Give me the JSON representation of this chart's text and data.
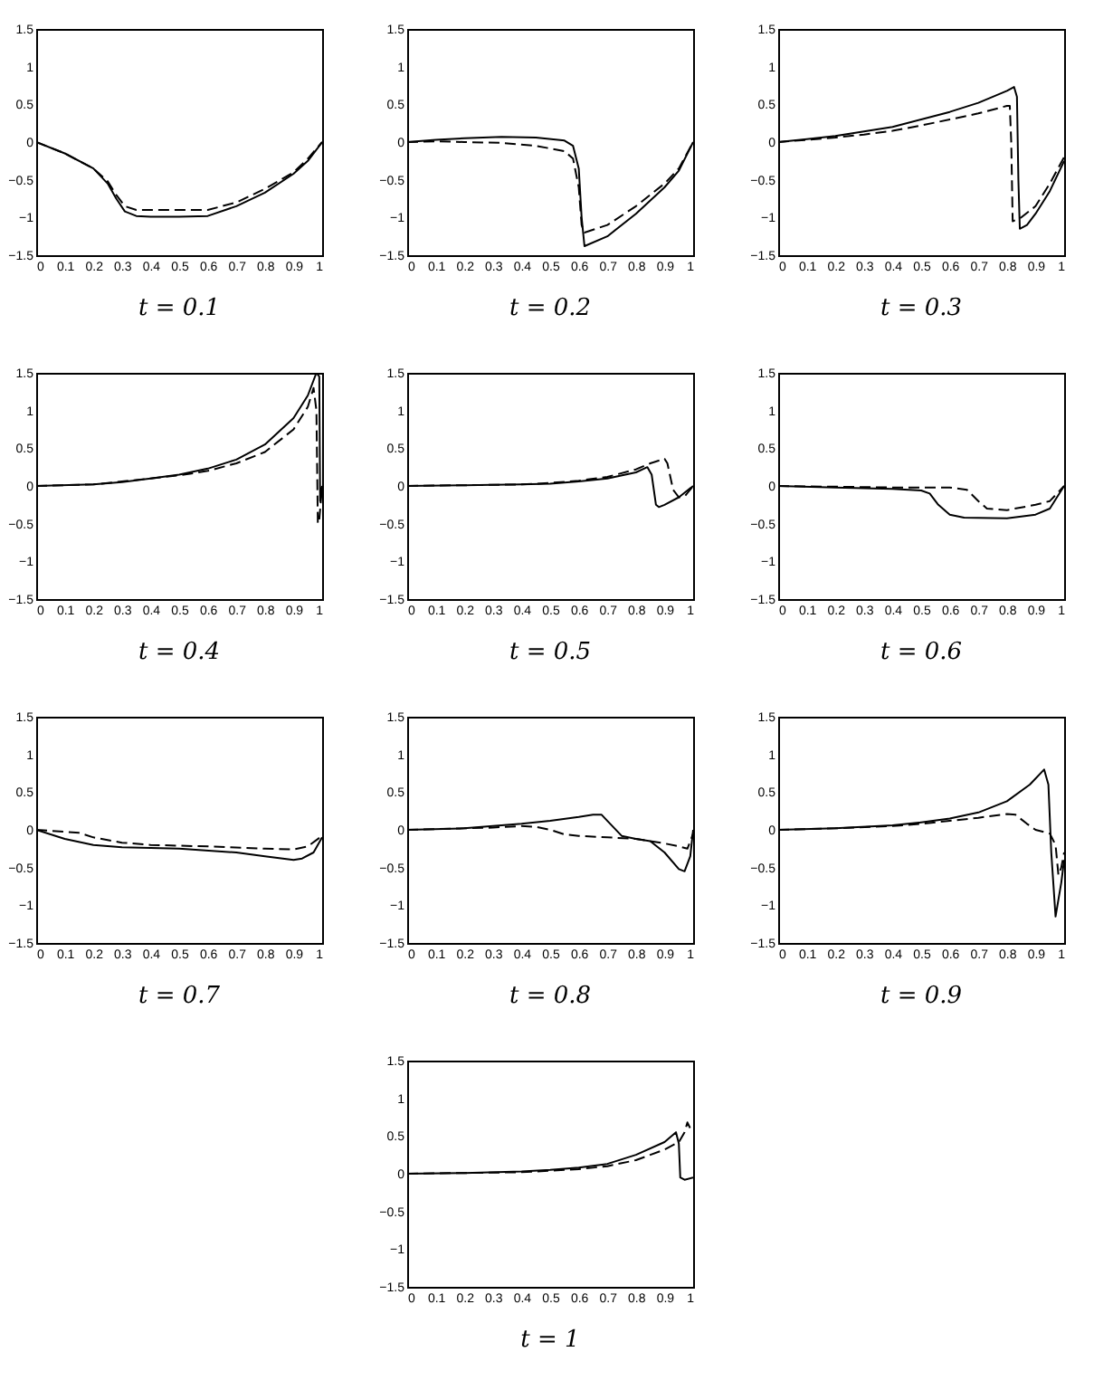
{
  "chart_data": [
    {
      "type": "line",
      "title": "t = 0.1",
      "xlim": [
        0,
        1
      ],
      "ylim": [
        -1.5,
        1.5
      ],
      "xticks": [
        0,
        0.1,
        0.2,
        0.3,
        0.4,
        0.5,
        0.6,
        0.7,
        0.8,
        0.9,
        1
      ],
      "yticks": [
        -1.5,
        -1,
        -0.5,
        0,
        0.5,
        1,
        1.5
      ],
      "grid": false,
      "marker": "none",
      "series": [
        {
          "color": "#000000",
          "line_style": "solid",
          "x": [
            0,
            0.1,
            0.2,
            0.25,
            0.28,
            0.31,
            0.35,
            0.4,
            0.5,
            0.6,
            0.7,
            0.8,
            0.9,
            0.95,
            1
          ],
          "values": [
            0,
            -0.15,
            -0.35,
            -0.55,
            -0.75,
            -0.92,
            -0.98,
            -0.99,
            -0.99,
            -0.98,
            -0.85,
            -0.67,
            -0.42,
            -0.25,
            0
          ]
        },
        {
          "color": "#000000",
          "line_style": "dashed",
          "x": [
            0,
            0.1,
            0.2,
            0.25,
            0.28,
            0.31,
            0.35,
            0.5,
            0.6,
            0.7,
            0.8,
            0.9,
            0.95,
            1
          ],
          "values": [
            0,
            -0.15,
            -0.35,
            -0.52,
            -0.7,
            -0.85,
            -0.9,
            -0.9,
            -0.9,
            -0.8,
            -0.62,
            -0.4,
            -0.22,
            0
          ]
        }
      ]
    },
    {
      "type": "line",
      "title": "t = 0.2",
      "xlim": [
        0,
        1
      ],
      "ylim": [
        -1.5,
        1.5
      ],
      "xticks": [
        0,
        0.1,
        0.2,
        0.3,
        0.4,
        0.5,
        0.6,
        0.7,
        0.8,
        0.9,
        1
      ],
      "yticks": [
        -1.5,
        -1,
        -0.5,
        0,
        0.5,
        1,
        1.5
      ],
      "grid": false,
      "marker": "none",
      "series": [
        {
          "color": "#000000",
          "line_style": "solid",
          "x": [
            0,
            0.1,
            0.2,
            0.33,
            0.45,
            0.55,
            0.58,
            0.6,
            0.61,
            0.62,
            0.7,
            0.8,
            0.9,
            0.95,
            1
          ],
          "values": [
            0,
            0.03,
            0.05,
            0.07,
            0.06,
            0.02,
            -0.05,
            -0.35,
            -1.0,
            -1.38,
            -1.25,
            -0.95,
            -0.6,
            -0.38,
            0
          ]
        },
        {
          "color": "#000000",
          "line_style": "dashed",
          "x": [
            0,
            0.1,
            0.2,
            0.33,
            0.45,
            0.55,
            0.58,
            0.6,
            0.61,
            0.62,
            0.7,
            0.8,
            0.9,
            0.95,
            1
          ],
          "values": [
            0,
            0.01,
            0,
            -0.01,
            -0.05,
            -0.12,
            -0.22,
            -0.6,
            -1.1,
            -1.2,
            -1.1,
            -0.85,
            -0.55,
            -0.35,
            0
          ]
        }
      ]
    },
    {
      "type": "line",
      "title": "t = 0.3",
      "xlim": [
        0,
        1
      ],
      "ylim": [
        -1.5,
        1.5
      ],
      "xticks": [
        0,
        0.1,
        0.2,
        0.3,
        0.4,
        0.5,
        0.6,
        0.7,
        0.8,
        0.9,
        1
      ],
      "yticks": [
        -1.5,
        -1,
        -0.5,
        0,
        0.5,
        1,
        1.5
      ],
      "grid": false,
      "marker": "none",
      "series": [
        {
          "color": "#000000",
          "line_style": "solid",
          "x": [
            0,
            0.1,
            0.2,
            0.3,
            0.4,
            0.5,
            0.6,
            0.7,
            0.8,
            0.825,
            0.835,
            0.84,
            0.845,
            0.87,
            0.9,
            0.95,
            1
          ],
          "values": [
            0,
            0.04,
            0.08,
            0.14,
            0.2,
            0.3,
            0.4,
            0.52,
            0.68,
            0.73,
            0.6,
            -0.5,
            -1.15,
            -1.1,
            -0.95,
            -0.65,
            -0.25
          ]
        },
        {
          "color": "#000000",
          "line_style": "dashed",
          "x": [
            0,
            0.1,
            0.2,
            0.3,
            0.4,
            0.5,
            0.6,
            0.7,
            0.8,
            0.81,
            0.815,
            0.82,
            0.85,
            0.9,
            0.95,
            1
          ],
          "values": [
            0,
            0.03,
            0.06,
            0.1,
            0.15,
            0.22,
            0.3,
            0.38,
            0.48,
            0.48,
            0,
            -1.05,
            -1.0,
            -0.85,
            -0.55,
            -0.2
          ]
        }
      ]
    },
    {
      "type": "line",
      "title": "t = 0.4",
      "xlim": [
        0,
        1
      ],
      "ylim": [
        -1.5,
        1.5
      ],
      "xticks": [
        0,
        0.1,
        0.2,
        0.3,
        0.4,
        0.5,
        0.6,
        0.7,
        0.8,
        0.9,
        1
      ],
      "yticks": [
        -1.5,
        -1,
        -0.5,
        0,
        0.5,
        1,
        1.5
      ],
      "grid": false,
      "marker": "none",
      "series": [
        {
          "color": "#000000",
          "line_style": "solid",
          "x": [
            0,
            0.2,
            0.3,
            0.4,
            0.5,
            0.6,
            0.7,
            0.8,
            0.9,
            0.95,
            0.98,
            0.99,
            0.993,
            1
          ],
          "values": [
            0,
            0.02,
            0.05,
            0.1,
            0.15,
            0.23,
            0.35,
            0.55,
            0.9,
            1.2,
            1.5,
            1.45,
            -0.2,
            0
          ]
        },
        {
          "color": "#000000",
          "line_style": "dashed",
          "x": [
            0,
            0.2,
            0.4,
            0.5,
            0.6,
            0.7,
            0.8,
            0.9,
            0.95,
            0.97,
            0.98,
            0.985,
            0.99,
            1
          ],
          "values": [
            0,
            0.02,
            0.1,
            0.14,
            0.2,
            0.3,
            0.45,
            0.75,
            1.05,
            1.3,
            1.0,
            -0.5,
            -0.45,
            0
          ]
        }
      ]
    },
    {
      "type": "line",
      "title": "t = 0.5",
      "xlim": [
        0,
        1
      ],
      "ylim": [
        -1.5,
        1.5
      ],
      "xticks": [
        0,
        0.1,
        0.2,
        0.3,
        0.4,
        0.5,
        0.6,
        0.7,
        0.8,
        0.9,
        1
      ],
      "yticks": [
        -1.5,
        -1,
        -0.5,
        0,
        0.5,
        1,
        1.5
      ],
      "grid": false,
      "marker": "none",
      "series": [
        {
          "color": "#000000",
          "line_style": "solid",
          "x": [
            0,
            0.2,
            0.4,
            0.5,
            0.6,
            0.7,
            0.8,
            0.84,
            0.855,
            0.87,
            0.88,
            0.9,
            0.95,
            1
          ],
          "values": [
            0,
            0.01,
            0.02,
            0.03,
            0.06,
            0.1,
            0.18,
            0.25,
            0.15,
            -0.25,
            -0.28,
            -0.25,
            -0.15,
            0
          ]
        },
        {
          "color": "#000000",
          "line_style": "dashed",
          "x": [
            0,
            0.2,
            0.4,
            0.5,
            0.6,
            0.7,
            0.8,
            0.85,
            0.9,
            0.91,
            0.93,
            0.95,
            0.97,
            1
          ],
          "values": [
            0,
            0.01,
            0.02,
            0.04,
            0.07,
            0.12,
            0.22,
            0.3,
            0.36,
            0.3,
            -0.05,
            -0.15,
            -0.14,
            0
          ]
        }
      ]
    },
    {
      "type": "line",
      "title": "t = 0.6",
      "xlim": [
        0,
        1
      ],
      "ylim": [
        -1.5,
        1.5
      ],
      "xticks": [
        0,
        0.1,
        0.2,
        0.3,
        0.4,
        0.5,
        0.6,
        0.7,
        0.8,
        0.9,
        1
      ],
      "yticks": [
        -1.5,
        -1,
        -0.5,
        0,
        0.5,
        1,
        1.5
      ],
      "grid": false,
      "marker": "none",
      "series": [
        {
          "color": "#000000",
          "line_style": "solid",
          "x": [
            0,
            0.2,
            0.4,
            0.5,
            0.53,
            0.56,
            0.6,
            0.65,
            0.8,
            0.9,
            0.95,
            1
          ],
          "values": [
            0,
            -0.02,
            -0.04,
            -0.06,
            -0.1,
            -0.25,
            -0.38,
            -0.42,
            -0.43,
            -0.38,
            -0.3,
            0
          ]
        },
        {
          "color": "#000000",
          "line_style": "dashed",
          "x": [
            0,
            0.2,
            0.4,
            0.6,
            0.66,
            0.7,
            0.73,
            0.8,
            0.9,
            0.95,
            1
          ],
          "values": [
            0,
            -0.01,
            -0.02,
            -0.02,
            -0.05,
            -0.2,
            -0.3,
            -0.32,
            -0.25,
            -0.2,
            0
          ]
        }
      ]
    },
    {
      "type": "line",
      "title": "t = 0.7",
      "xlim": [
        0,
        1
      ],
      "ylim": [
        -1.5,
        1.5
      ],
      "xticks": [
        0,
        0.1,
        0.2,
        0.3,
        0.4,
        0.5,
        0.6,
        0.7,
        0.8,
        0.9,
        1
      ],
      "yticks": [
        -1.5,
        -1,
        -0.5,
        0,
        0.5,
        1,
        1.5
      ],
      "grid": false,
      "marker": "none",
      "series": [
        {
          "color": "#000000",
          "line_style": "solid",
          "x": [
            0,
            0.1,
            0.2,
            0.3,
            0.5,
            0.7,
            0.8,
            0.9,
            0.93,
            0.97,
            1
          ],
          "values": [
            0,
            -0.12,
            -0.2,
            -0.23,
            -0.25,
            -0.3,
            -0.35,
            -0.4,
            -0.38,
            -0.3,
            -0.1
          ]
        },
        {
          "color": "#000000",
          "line_style": "dashed",
          "x": [
            0,
            0.15,
            0.2,
            0.3,
            0.4,
            0.6,
            0.8,
            0.9,
            0.95,
            1
          ],
          "values": [
            0,
            -0.04,
            -0.1,
            -0.17,
            -0.2,
            -0.22,
            -0.25,
            -0.26,
            -0.22,
            -0.08
          ]
        }
      ]
    },
    {
      "type": "line",
      "title": "t = 0.8",
      "xlim": [
        0,
        1
      ],
      "ylim": [
        -1.5,
        1.5
      ],
      "xticks": [
        0,
        0.1,
        0.2,
        0.3,
        0.4,
        0.5,
        0.6,
        0.7,
        0.8,
        0.9,
        1
      ],
      "yticks": [
        -1.5,
        -1,
        -0.5,
        0,
        0.5,
        1,
        1.5
      ],
      "grid": false,
      "marker": "none",
      "series": [
        {
          "color": "#000000",
          "line_style": "solid",
          "x": [
            0,
            0.2,
            0.4,
            0.5,
            0.6,
            0.65,
            0.68,
            0.71,
            0.75,
            0.8,
            0.85,
            0.9,
            0.95,
            0.97,
            0.99,
            1
          ],
          "values": [
            0,
            0.02,
            0.08,
            0.12,
            0.17,
            0.2,
            0.2,
            0.08,
            -0.08,
            -0.12,
            -0.15,
            -0.3,
            -0.52,
            -0.55,
            -0.35,
            0
          ]
        },
        {
          "color": "#000000",
          "line_style": "dashed",
          "x": [
            0,
            0.2,
            0.3,
            0.4,
            0.45,
            0.5,
            0.55,
            0.6,
            0.7,
            0.8,
            0.9,
            0.95,
            0.98,
            1
          ],
          "values": [
            0,
            0.02,
            0.03,
            0.05,
            0.04,
            0,
            -0.06,
            -0.08,
            -0.1,
            -0.12,
            -0.18,
            -0.22,
            -0.25,
            -0.05
          ]
        }
      ]
    },
    {
      "type": "line",
      "title": "t = 0.9",
      "xlim": [
        0,
        1
      ],
      "ylim": [
        -1.5,
        1.5
      ],
      "xticks": [
        0,
        0.1,
        0.2,
        0.3,
        0.4,
        0.5,
        0.6,
        0.7,
        0.8,
        0.9,
        1
      ],
      "yticks": [
        -1.5,
        -1,
        -0.5,
        0,
        0.5,
        1,
        1.5
      ],
      "grid": false,
      "marker": "none",
      "series": [
        {
          "color": "#000000",
          "line_style": "solid",
          "x": [
            0,
            0.2,
            0.4,
            0.5,
            0.6,
            0.7,
            0.8,
            0.88,
            0.93,
            0.945,
            0.955,
            0.97,
            0.99,
            1
          ],
          "values": [
            0,
            0.02,
            0.06,
            0.1,
            0.15,
            0.23,
            0.38,
            0.6,
            0.8,
            0.6,
            -0.3,
            -1.15,
            -0.7,
            -0.4
          ]
        },
        {
          "color": "#000000",
          "line_style": "dashed",
          "x": [
            0,
            0.2,
            0.4,
            0.5,
            0.6,
            0.7,
            0.8,
            0.83,
            0.87,
            0.9,
            0.95,
            0.97,
            0.98,
            0.99,
            1
          ],
          "values": [
            0,
            0.02,
            0.05,
            0.08,
            0.12,
            0.16,
            0.21,
            0.2,
            0.08,
            0,
            -0.05,
            -0.2,
            -0.6,
            -0.5,
            -0.3
          ]
        }
      ]
    },
    {
      "type": "line",
      "title": "t = 1",
      "xlim": [
        0,
        1
      ],
      "ylim": [
        -1.5,
        1.5
      ],
      "xticks": [
        0,
        0.1,
        0.2,
        0.3,
        0.4,
        0.5,
        0.6,
        0.7,
        0.8,
        0.9,
        1
      ],
      "yticks": [
        -1.5,
        -1,
        -0.5,
        0,
        0.5,
        1,
        1.5
      ],
      "grid": false,
      "marker": "none",
      "series": [
        {
          "color": "#000000",
          "line_style": "solid",
          "x": [
            0,
            0.2,
            0.4,
            0.5,
            0.6,
            0.7,
            0.8,
            0.9,
            0.94,
            0.95,
            0.955,
            0.97,
            1
          ],
          "values": [
            0,
            0.01,
            0.03,
            0.05,
            0.08,
            0.13,
            0.25,
            0.42,
            0.55,
            0.4,
            -0.05,
            -0.08,
            -0.05
          ]
        },
        {
          "color": "#000000",
          "line_style": "dashed",
          "x": [
            0,
            0.2,
            0.4,
            0.5,
            0.6,
            0.7,
            0.8,
            0.9,
            0.95,
            0.97,
            0.98,
            0.99,
            1
          ],
          "values": [
            0,
            0.01,
            0.02,
            0.04,
            0.06,
            0.1,
            0.18,
            0.32,
            0.42,
            0.55,
            0.68,
            0.6,
            0.6
          ]
        }
      ]
    }
  ]
}
